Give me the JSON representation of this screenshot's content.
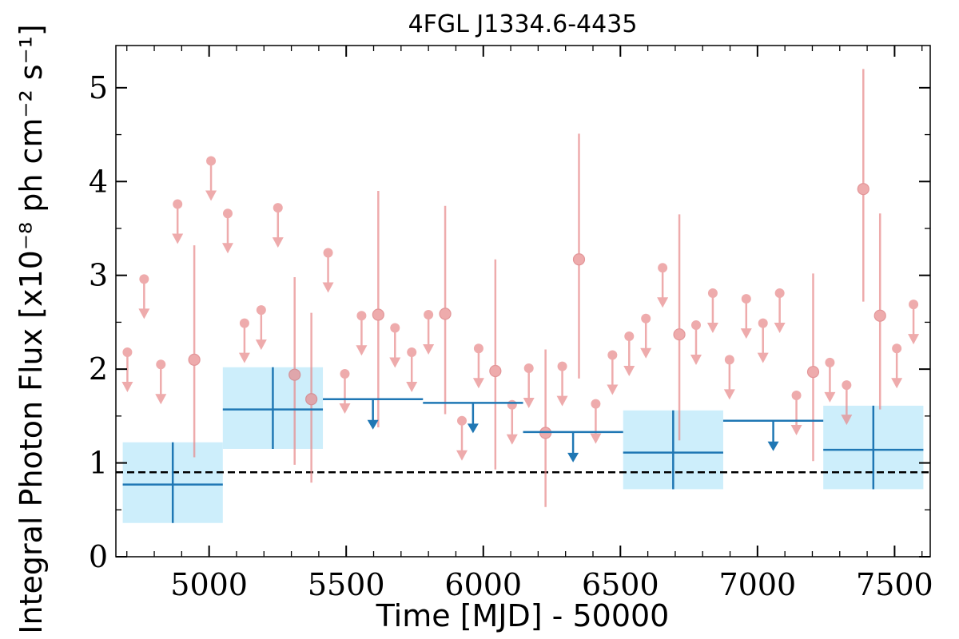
{
  "chart_data": {
    "type": "scatter",
    "title": "4FGL J1334.6-4435",
    "xlabel": "Time [MJD] - 50000",
    "ylabel": "Integral Photon Flux [x10⁻⁸ ph cm⁻² s⁻¹]",
    "xlim": [
      4660,
      7630
    ],
    "ylim": [
      0,
      5.45
    ],
    "x_ticks": [
      "5000",
      "5500",
      "6000",
      "6500",
      "7000",
      "7500"
    ],
    "y_ticks": [
      "0",
      "1",
      "2",
      "3",
      "4",
      "5"
    ],
    "reference_line": {
      "y": 0.9,
      "style": "dashed",
      "color": "#000000"
    },
    "colors": {
      "short_bins": "#e8888a",
      "long_bins": "#1f77b4",
      "long_bins_band": "#cdeefb"
    },
    "series": [
      {
        "points": [
          {
            "x": 4702,
            "y": 2.18,
            "ul": true
          },
          {
            "x": 4763,
            "y": 2.96,
            "ul": true
          },
          {
            "x": 4824,
            "y": 2.05,
            "ul": true
          },
          {
            "x": 4885,
            "y": 3.76,
            "ul": true
          },
          {
            "x": 4946,
            "y": 2.1,
            "lo": 1.06,
            "hi": 3.32
          },
          {
            "x": 5007,
            "y": 4.22,
            "ul": true
          },
          {
            "x": 5068,
            "y": 3.66,
            "ul": true
          },
          {
            "x": 5129,
            "y": 2.49,
            "ul": true
          },
          {
            "x": 5190,
            "y": 2.63,
            "ul": true
          },
          {
            "x": 5251,
            "y": 3.72,
            "ul": true
          },
          {
            "x": 5312,
            "y": 1.94,
            "lo": 0.98,
            "hi": 2.98
          },
          {
            "x": 5373,
            "y": 1.68,
            "lo": 0.79,
            "hi": 2.6
          },
          {
            "x": 5434,
            "y": 3.24,
            "ul": true
          },
          {
            "x": 5495,
            "y": 1.95,
            "ul": true
          },
          {
            "x": 5556,
            "y": 2.57,
            "ul": true
          },
          {
            "x": 5617,
            "y": 2.58,
            "lo": 1.38,
            "hi": 3.9
          },
          {
            "x": 5678,
            "y": 2.44,
            "ul": true
          },
          {
            "x": 5739,
            "y": 2.18,
            "ul": true
          },
          {
            "x": 5800,
            "y": 2.58,
            "ul": true
          },
          {
            "x": 5861,
            "y": 2.59,
            "lo": 1.52,
            "hi": 3.74
          },
          {
            "x": 5922,
            "y": 1.45,
            "ul": true
          },
          {
            "x": 5983,
            "y": 2.22,
            "ul": true
          },
          {
            "x": 6044,
            "y": 1.98,
            "lo": 0.93,
            "hi": 3.17
          },
          {
            "x": 6105,
            "y": 1.62,
            "ul": true
          },
          {
            "x": 6166,
            "y": 2.01,
            "ul": true
          },
          {
            "x": 6227,
            "y": 1.32,
            "lo": 0.53,
            "hi": 2.21
          },
          {
            "x": 6288,
            "y": 2.03,
            "ul": true
          },
          {
            "x": 6349,
            "y": 3.17,
            "lo": 1.9,
            "hi": 4.51
          },
          {
            "x": 6410,
            "y": 1.63,
            "ul": true
          },
          {
            "x": 6471,
            "y": 2.15,
            "ul": true
          },
          {
            "x": 6532,
            "y": 2.35,
            "ul": true
          },
          {
            "x": 6593,
            "y": 2.54,
            "ul": true
          },
          {
            "x": 6654,
            "y": 3.08,
            "ul": true
          },
          {
            "x": 6715,
            "y": 2.37,
            "lo": 1.24,
            "hi": 3.65
          },
          {
            "x": 6776,
            "y": 2.47,
            "ul": true
          },
          {
            "x": 6837,
            "y": 2.81,
            "ul": true
          },
          {
            "x": 6898,
            "y": 2.1,
            "ul": true
          },
          {
            "x": 6959,
            "y": 2.75,
            "ul": true
          },
          {
            "x": 7020,
            "y": 2.49,
            "ul": true
          },
          {
            "x": 7081,
            "y": 2.81,
            "ul": true
          },
          {
            "x": 7142,
            "y": 1.72,
            "ul": true
          },
          {
            "x": 7203,
            "y": 1.97,
            "lo": 1.02,
            "hi": 3.02
          },
          {
            "x": 7264,
            "y": 2.07,
            "ul": true
          },
          {
            "x": 7325,
            "y": 1.83,
            "ul": true
          },
          {
            "x": 7386,
            "y": 3.92,
            "lo": 2.72,
            "hi": 5.2
          },
          {
            "x": 7447,
            "y": 2.57,
            "lo": 1.57,
            "hi": 3.66
          },
          {
            "x": 7508,
            "y": 2.22,
            "ul": true
          },
          {
            "x": 7569,
            "y": 2.69,
            "ul": true
          }
        ]
      },
      {
        "bins": [
          {
            "x_start": 4685,
            "x_end": 5050,
            "y": 0.77,
            "lo": 0.36,
            "hi": 1.22
          },
          {
            "x_start": 5050,
            "x_end": 5415,
            "y": 1.57,
            "lo": 1.15,
            "hi": 2.02
          },
          {
            "x_start": 5415,
            "x_end": 5780,
            "y": 1.68,
            "ul": true
          },
          {
            "x_start": 5780,
            "x_end": 6145,
            "y": 1.64,
            "ul": true
          },
          {
            "x_start": 6145,
            "x_end": 6510,
            "y": 1.33,
            "ul": true
          },
          {
            "x_start": 6510,
            "x_end": 6875,
            "y": 1.11,
            "lo": 0.72,
            "hi": 1.56
          },
          {
            "x_start": 6875,
            "x_end": 7240,
            "y": 1.45,
            "ul": true
          },
          {
            "x_start": 7240,
            "x_end": 7605,
            "y": 1.14,
            "lo": 0.72,
            "hi": 1.61
          }
        ]
      }
    ]
  }
}
